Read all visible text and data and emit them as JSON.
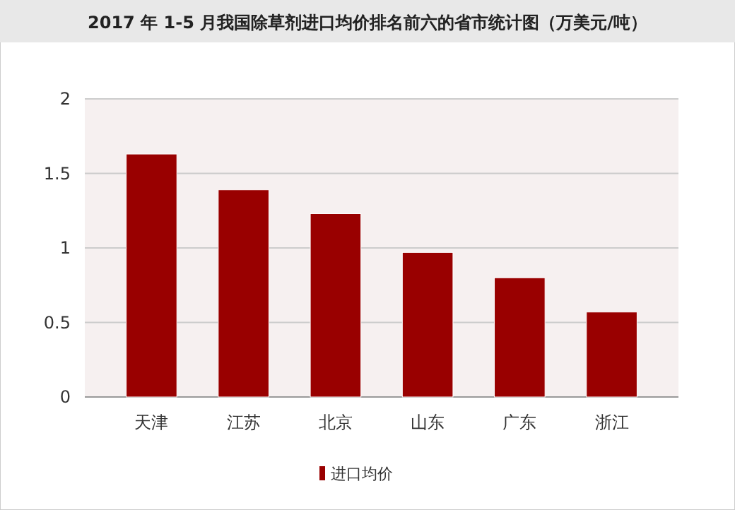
{
  "chart_data": {
    "type": "bar",
    "title": "2017 年 1-5 月我国除草剂进口均价排名前六的省市统计图（万美元/吨）",
    "categories": [
      "天津",
      "江苏",
      "北京",
      "山东",
      "广东",
      "浙江"
    ],
    "series": [
      {
        "name": "进口均价",
        "color": "#990000",
        "values": [
          1.63,
          1.39,
          1.23,
          0.97,
          0.8,
          0.57
        ]
      }
    ],
    "ylim": [
      0,
      2
    ],
    "yticks": [
      0,
      0.5,
      1,
      1.5,
      2
    ],
    "grid": "y",
    "legend": "bottom"
  }
}
